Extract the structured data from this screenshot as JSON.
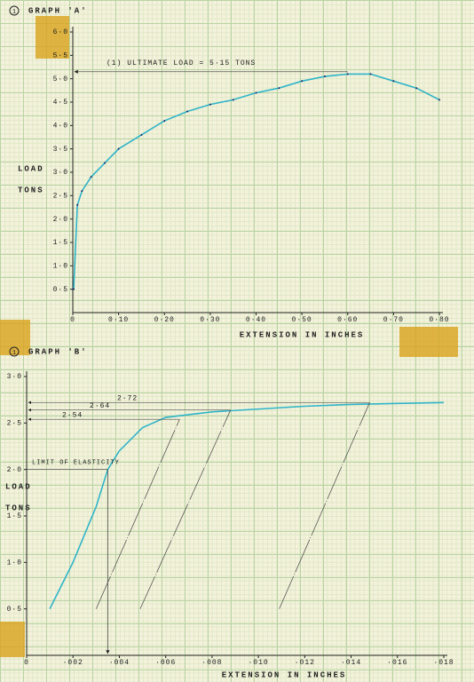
{
  "chart_data": [
    {
      "type": "line",
      "number": "1",
      "title": "GRAPH 'A'",
      "x_label": "EXTENSION IN INCHES",
      "y_label": [
        "LOAD",
        "TONS"
      ],
      "xlim": [
        0,
        0.8
      ],
      "ylim": [
        0,
        6
      ],
      "xticks": [
        {
          "value": 0,
          "label": "0"
        },
        {
          "value": 0.1,
          "label": "0·10"
        },
        {
          "value": 0.2,
          "label": "0·20"
        },
        {
          "value": 0.3,
          "label": "0·30"
        },
        {
          "value": 0.4,
          "label": "0·40"
        },
        {
          "value": 0.5,
          "label": "0·50"
        },
        {
          "value": 0.6,
          "label": "0·60"
        },
        {
          "value": 0.7,
          "label": "0·70"
        },
        {
          "value": 0.8,
          "label": "0·80"
        }
      ],
      "yticks": [
        {
          "value": 0.5,
          "label": "0·5"
        },
        {
          "value": 1,
          "label": "1·0"
        },
        {
          "value": 1.5,
          "label": "1·5"
        },
        {
          "value": 2,
          "label": "2·0"
        },
        {
          "value": 2.5,
          "label": "2·5"
        },
        {
          "value": 3,
          "label": "3·0"
        },
        {
          "value": 3.5,
          "label": "3·5"
        },
        {
          "value": 4,
          "label": "4·0"
        },
        {
          "value": 4.5,
          "label": "4·5"
        },
        {
          "value": 5,
          "label": "5·0"
        },
        {
          "value": 5.5,
          "label": "5·5"
        },
        {
          "value": 6,
          "label": "6·0"
        }
      ],
      "color": "#2fb4c8",
      "x": [
        0.002,
        0.01,
        0.02,
        0.04,
        0.07,
        0.1,
        0.15,
        0.2,
        0.25,
        0.3,
        0.35,
        0.4,
        0.45,
        0.5,
        0.55,
        0.6,
        0.65,
        0.7,
        0.75,
        0.8
      ],
      "values": [
        0.5,
        2.3,
        2.6,
        2.9,
        3.2,
        3.5,
        3.8,
        4.1,
        4.3,
        4.45,
        4.55,
        4.7,
        4.8,
        4.95,
        5.05,
        5.1,
        5.1,
        4.95,
        4.8,
        4.55
      ],
      "annotation": {
        "text": "(1) ULTIMATE LOAD = 5·15 TONS",
        "value": 5.15
      }
    },
    {
      "type": "line",
      "number": "1",
      "title": "GRAPH 'B'",
      "x_label": "EXTENSION IN INCHES",
      "y_label": [
        "LOAD",
        "TONS"
      ],
      "xlim": [
        0,
        0.018
      ],
      "ylim": [
        0,
        3
      ],
      "xticks": [
        {
          "value": 0,
          "label": "0"
        },
        {
          "value": 0.002,
          "label": "·002"
        },
        {
          "value": 0.004,
          "label": "·004"
        },
        {
          "value": 0.006,
          "label": "·006"
        },
        {
          "value": 0.008,
          "label": "·008"
        },
        {
          "value": 0.01,
          "label": "·010"
        },
        {
          "value": 0.012,
          "label": "·012"
        },
        {
          "value": 0.014,
          "label": "·014"
        },
        {
          "value": 0.016,
          "label": "·016"
        },
        {
          "value": 0.018,
          "label": "·018"
        }
      ],
      "yticks": [
        {
          "value": 0.5,
          "label": "0·5"
        },
        {
          "value": 1,
          "label": "1·0"
        },
        {
          "value": 1.5,
          "label": "1·5"
        },
        {
          "value": 2,
          "label": "2·0"
        },
        {
          "value": 2.5,
          "label": "2·5"
        },
        {
          "value": 3,
          "label": "3·0"
        }
      ],
      "color": "#2fb4c8",
      "x": [
        0.001,
        0.002,
        0.003,
        0.0035,
        0.004,
        0.005,
        0.006,
        0.008,
        0.01,
        0.012,
        0.014,
        0.016,
        0.018
      ],
      "values": [
        0.5,
        1.0,
        1.6,
        2.0,
        2.2,
        2.45,
        2.56,
        2.62,
        2.65,
        2.68,
        2.7,
        2.71,
        2.72
      ],
      "limit": {
        "text": "LIMIT OF ELASTICITY",
        "x": 0.0035,
        "y": 2.0
      },
      "proof_lines": [
        {
          "label": "2·54",
          "x": [
            0.003,
            0.0066
          ],
          "y": [
            0.5,
            2.54
          ]
        },
        {
          "label": "2·64",
          "x": [
            0.0049,
            0.0088
          ],
          "y": [
            0.5,
            2.64
          ]
        },
        {
          "label": "2·72",
          "x": [
            0.0109,
            0.0148
          ],
          "y": [
            0.5,
            2.72
          ]
        }
      ]
    }
  ]
}
